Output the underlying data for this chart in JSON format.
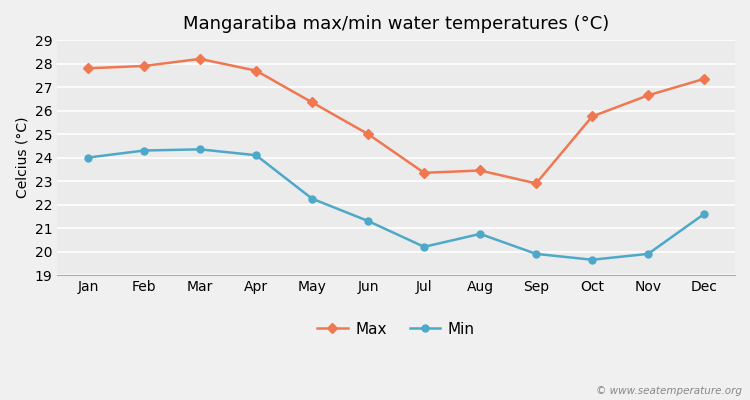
{
  "title": "Mangaratiba max/min water temperatures (°C)",
  "xlabel": "",
  "ylabel": "Celcius (°C)",
  "months": [
    "Jan",
    "Feb",
    "Mar",
    "Apr",
    "May",
    "Jun",
    "Jul",
    "Aug",
    "Sep",
    "Oct",
    "Nov",
    "Dec"
  ],
  "max_values": [
    27.8,
    27.9,
    28.2,
    27.7,
    26.35,
    25.0,
    23.35,
    23.45,
    22.9,
    25.75,
    26.65,
    27.35
  ],
  "min_values": [
    24.0,
    24.3,
    24.35,
    24.1,
    22.25,
    21.3,
    20.2,
    20.75,
    19.9,
    19.65,
    19.9,
    21.6
  ],
  "max_color": "#f07850",
  "min_color": "#4ea8c8",
  "background_color": "#f0f0f0",
  "plot_bg_color": "#ebebeb",
  "ylim": [
    19,
    29
  ],
  "yticks": [
    19,
    20,
    21,
    22,
    23,
    24,
    25,
    26,
    27,
    28,
    29
  ],
  "grid_color": "#ffffff",
  "watermark": "© www.seatemperature.org",
  "title_fontsize": 13,
  "axis_fontsize": 10,
  "tick_fontsize": 10,
  "legend_labels": [
    "Max",
    "Min"
  ],
  "marker_max": "D",
  "marker_min": "o",
  "marker_size": 5,
  "line_width": 1.8
}
